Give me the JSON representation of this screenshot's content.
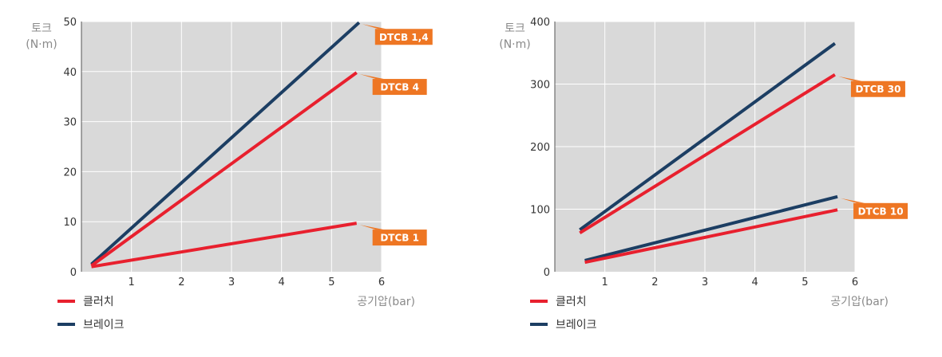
{
  "chart_data": [
    {
      "type": "line",
      "title": "",
      "ylabel_line1": "토크",
      "ylabel_line2": "(N·m)",
      "xlabel": "공기압(bar)",
      "xlim": [
        0,
        6
      ],
      "ylim": [
        0,
        50
      ],
      "xticks": [
        "1",
        "2",
        "3",
        "4",
        "5",
        "6"
      ],
      "yticks": [
        "0",
        "10",
        "20",
        "30",
        "40",
        "50"
      ],
      "yticks_values": [
        0,
        10,
        20,
        30,
        40,
        50
      ],
      "grid": true,
      "legend_position": "bottom-left",
      "legend": [
        {
          "label": "클러치",
          "color": "#e8202e"
        },
        {
          "label": "브레이크",
          "color": "#1c3e63"
        }
      ],
      "series": [
        {
          "kind": "brake",
          "color": "#1c3e63",
          "x": [
            0.2,
            5.55
          ],
          "y": [
            1.5,
            49.8
          ]
        },
        {
          "kind": "clutch",
          "color": "#e8202e",
          "x": [
            0.2,
            5.5
          ],
          "y": [
            1.2,
            39.8
          ]
        },
        {
          "kind": "clutch",
          "color": "#e8202e",
          "x": [
            0.2,
            5.5
          ],
          "y": [
            1.0,
            9.7
          ]
        }
      ],
      "annotations": [
        {
          "text": "DTCB 1,4",
          "x": 5.55,
          "y": 49.8
        },
        {
          "text": "DTCB 4",
          "x": 5.5,
          "y": 39.8
        },
        {
          "text": "DTCB 1",
          "x": 5.5,
          "y": 9.7
        }
      ]
    },
    {
      "type": "line",
      "title": "",
      "ylabel_line1": "토크",
      "ylabel_line2": "(N·m)",
      "xlabel": "공기압(bar)",
      "xlim": [
        0,
        6
      ],
      "ylim": [
        0,
        400
      ],
      "xticks": [
        "1",
        "2",
        "3",
        "4",
        "5",
        "6"
      ],
      "yticks": [
        "0",
        "100",
        "200",
        "300",
        "400"
      ],
      "yticks_values": [
        0,
        100,
        200,
        300,
        400
      ],
      "grid": true,
      "legend_position": "bottom-left",
      "legend": [
        {
          "label": "클러치",
          "color": "#e8202e"
        },
        {
          "label": "브레이크",
          "color": "#1c3e63"
        }
      ],
      "series": [
        {
          "kind": "brake",
          "color": "#1c3e63",
          "x": [
            0.5,
            5.6
          ],
          "y": [
            67,
            365
          ]
        },
        {
          "kind": "clutch",
          "color": "#e8202e",
          "x": [
            0.5,
            5.6
          ],
          "y": [
            62,
            315
          ]
        },
        {
          "kind": "brake",
          "color": "#1c3e63",
          "x": [
            0.6,
            5.65
          ],
          "y": [
            18,
            120
          ]
        },
        {
          "kind": "clutch",
          "color": "#e8202e",
          "x": [
            0.6,
            5.65
          ],
          "y": [
            15,
            99
          ]
        }
      ],
      "annotations": [
        {
          "text": "DTCB 30",
          "x": 5.6,
          "y": 315
        },
        {
          "text": "DTCB 10",
          "x": 5.65,
          "y": 120
        }
      ]
    }
  ]
}
